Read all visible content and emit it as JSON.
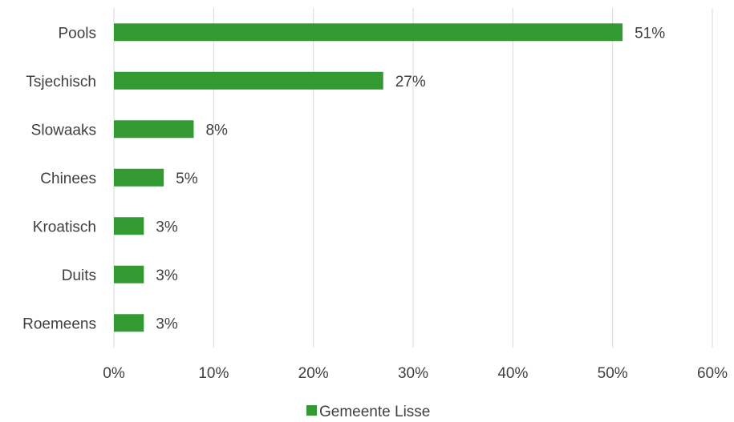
{
  "chart_data": {
    "type": "bar",
    "orientation": "horizontal",
    "categories": [
      "Pools",
      "Tsjechisch",
      "Slowaaks",
      "Chinees",
      "Kroatisch",
      "Duits",
      "Roemeens"
    ],
    "series": [
      {
        "name": "Gemeente Lisse",
        "values": [
          51,
          27,
          8,
          5,
          3,
          3,
          3
        ],
        "data_labels": [
          "51%",
          "27%",
          "8%",
          "5%",
          "3%",
          "3%",
          "3%"
        ],
        "color": "#339933"
      }
    ],
    "xlim": [
      0,
      60
    ],
    "xticks": [
      0,
      10,
      20,
      30,
      40,
      50,
      60
    ],
    "xtick_labels": [
      "0%",
      "10%",
      "20%",
      "30%",
      "40%",
      "50%",
      "60%"
    ],
    "grid": "vertical",
    "legend": "bottom"
  }
}
